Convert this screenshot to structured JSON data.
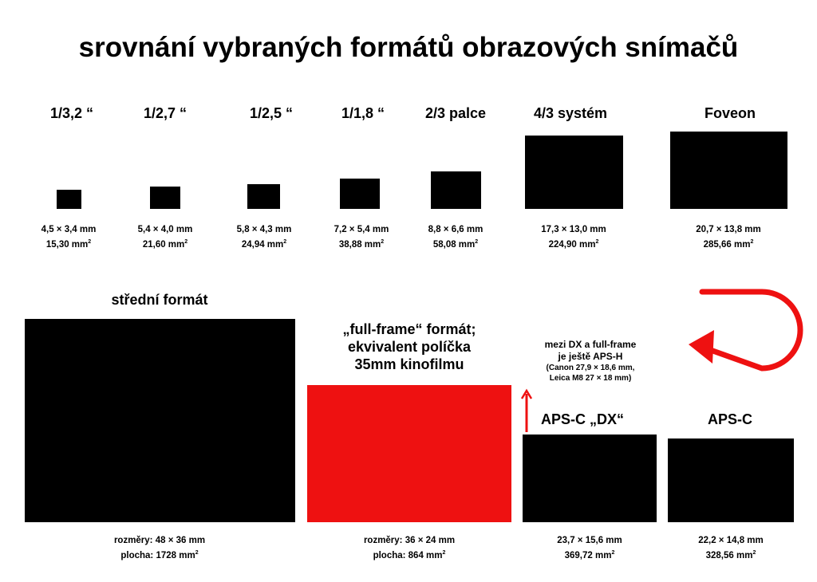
{
  "title": "srovnání vybraných formátů obrazových snímačů",
  "top_formats": [
    {
      "name": "1/3,2 “",
      "dims": "4,5 × 3,4 mm",
      "area": "15,30 mm",
      "unit_exp": "2"
    },
    {
      "name": "1/2,7 “",
      "dims": "5,4 × 4,0 mm",
      "area": "21,60 mm",
      "unit_exp": "2"
    },
    {
      "name": "1/2,5 “",
      "dims": "5,8 × 4,3 mm",
      "area": "24,94 mm",
      "unit_exp": "2"
    },
    {
      "name": "1/1,8 “",
      "dims": "7,2 × 5,4 mm",
      "area": "38,88 mm",
      "unit_exp": "2"
    },
    {
      "name": "2/3 palce",
      "dims": "8,8 × 6,6 mm",
      "area": "58,08 mm",
      "unit_exp": "2"
    },
    {
      "name": "4/3 systém",
      "dims": "17,3 × 13,0 mm",
      "area": "224,90 mm",
      "unit_exp": "2"
    },
    {
      "name": "Foveon",
      "dims": "20,7 × 13,8 mm",
      "area": "285,66 mm",
      "unit_exp": "2"
    }
  ],
  "medium": {
    "name": "střední formát",
    "dims": "rozměry: 48 × 36 mm",
    "area": "plocha: 1728 mm",
    "unit_exp": "2"
  },
  "fullframe": {
    "line1": "„full-frame“ formát;",
    "line2": "ekvivalent políčka",
    "line3": "35mm kinofilmu",
    "dims": "rozměry: 36 × 24 mm",
    "area": "plocha: 864 mm",
    "unit_exp": "2",
    "color": "#ee1111"
  },
  "note": {
    "line1": "mezi DX a full-frame",
    "line2": "je ještě APS-H",
    "line3": "(Canon 27,9 × 18,6 mm,",
    "line4": "Leica M8 27 × 18 mm)"
  },
  "apsc_dx": {
    "name": "APS-C „DX“",
    "dims": "23,7 × 15,6 mm",
    "area": "369,72 mm",
    "unit_exp": "2"
  },
  "apsc": {
    "name": "APS-C",
    "dims": "22,2 × 14,8 mm",
    "area": "328,56 mm",
    "unit_exp": "2"
  },
  "arrow_color": "#ee1111"
}
